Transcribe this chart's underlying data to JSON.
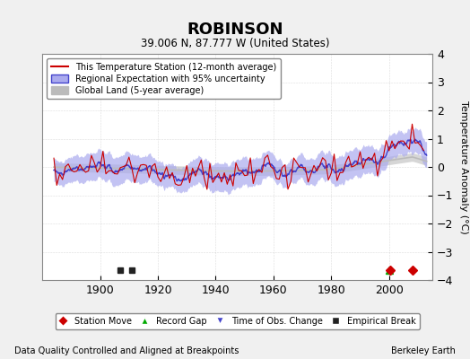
{
  "title": "ROBINSON",
  "subtitle": "39.006 N, 87.777 W (United States)",
  "ylabel": "Temperature Anomaly (°C)",
  "xlabel_note": "Data Quality Controlled and Aligned at Breakpoints",
  "credit": "Berkeley Earth",
  "ylim": [
    -4,
    4
  ],
  "xlim": [
    1880,
    2015
  ],
  "xticks": [
    1900,
    1920,
    1940,
    1960,
    1980,
    2000
  ],
  "yticks": [
    -4,
    -3,
    -2,
    -1,
    0,
    1,
    2,
    3,
    4
  ],
  "bg_color": "#f0f0f0",
  "plot_bg_color": "#ffffff",
  "station_color": "#cc0000",
  "regional_color": "#4444cc",
  "regional_fill_color": "#aaaaee",
  "global_color": "#bbbbbb",
  "marker_station_move_color": "#cc0000",
  "marker_record_gap_color": "#00aa00",
  "marker_obs_change_color": "#4444cc",
  "marker_empirical_break_color": "#222222",
  "station_moves": [
    2000.5,
    2008.0
  ],
  "record_gaps": [
    2000.0
  ],
  "obs_changes": [],
  "empirical_breaks": [
    1907.0,
    1911.0
  ],
  "seed": 42
}
